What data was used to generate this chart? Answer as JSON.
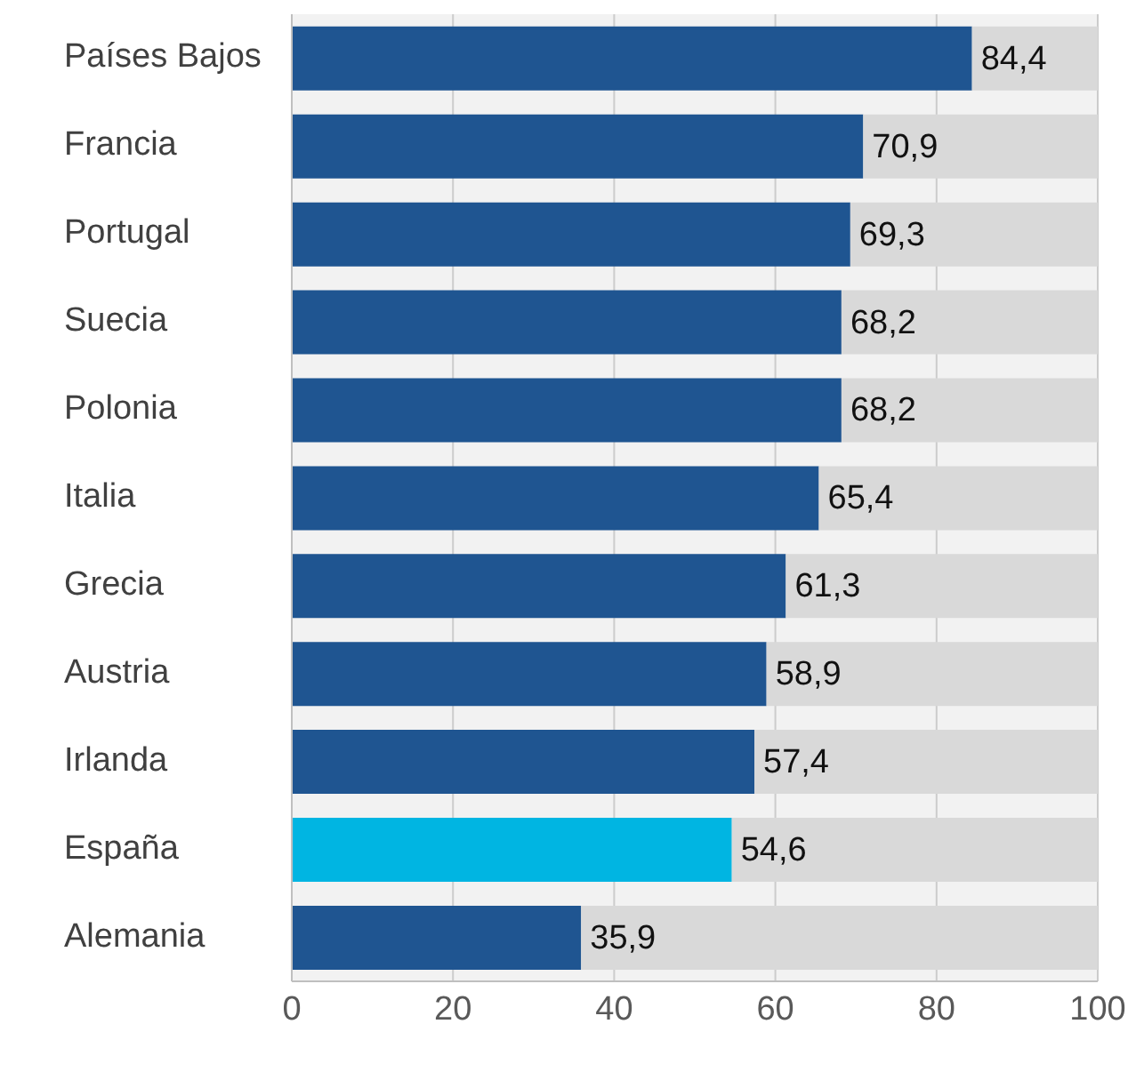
{
  "chart_data": {
    "type": "bar",
    "orientation": "horizontal",
    "stacked": true,
    "categories": [
      "Países Bajos",
      "Francia",
      "Portugal",
      "Suecia",
      "Polonia",
      "Italia",
      "Grecia",
      "Austria",
      "Irlanda",
      "España",
      "Alemania"
    ],
    "series": [
      {
        "color": "#1f5591",
        "colors": [
          "#1f5591",
          "#1f5591",
          "#1f5591",
          "#1f5591",
          "#1f5591",
          "#1f5591",
          "#1f5591",
          "#1f5591",
          "#1f5591",
          "#00b5e2",
          "#1f5591"
        ],
        "values": [
          84.4,
          70.9,
          69.3,
          68.2,
          68.2,
          65.4,
          61.3,
          58.9,
          57.4,
          54.6,
          35.9
        ],
        "value_labels": [
          "84,4",
          "70,9",
          "69,3",
          "68,2",
          "68,2",
          "65,4",
          "61,3",
          "58,9",
          "57,4",
          "54,6",
          "35,9"
        ]
      },
      {
        "color": "#d9d9d9",
        "values": [
          15.6,
          29.1,
          30.7,
          31.8,
          31.8,
          34.6,
          38.7,
          41.1,
          42.6,
          45.4,
          64.1
        ]
      }
    ],
    "xlim": [
      0,
      100
    ],
    "xticks": [
      0,
      20,
      40,
      60,
      80,
      100
    ],
    "grid": "x"
  }
}
